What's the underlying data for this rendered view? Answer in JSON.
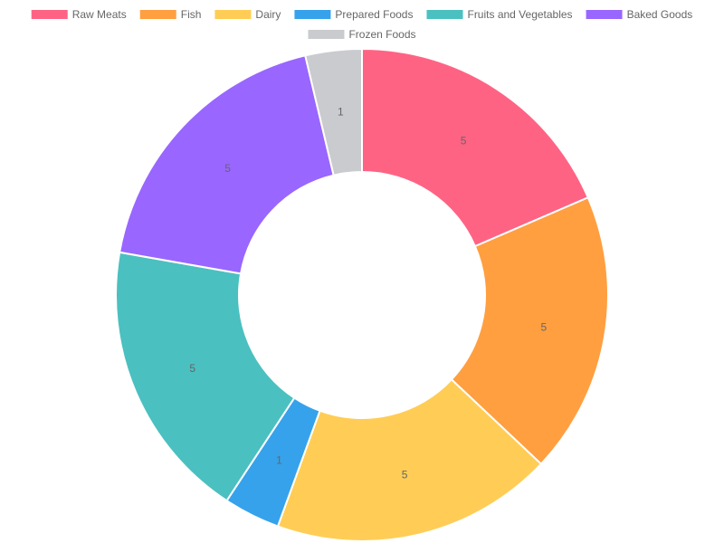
{
  "chart_data": {
    "type": "doughnut",
    "title": "",
    "categories": [
      "Raw Meats",
      "Fish",
      "Dairy",
      "Prepared Foods",
      "Fruits and Vegetables",
      "Baked Goods",
      "Frozen Foods"
    ],
    "values": [
      5,
      5,
      5,
      1,
      5,
      5,
      1
    ],
    "colors": [
      "#ff6384",
      "#ff9f40",
      "#ffcd56",
      "#36a2eb",
      "#4bc0c0",
      "#9966ff",
      "#c9cbcf"
    ],
    "data_labels_shown": true,
    "legend": {
      "position": "top",
      "items": [
        {
          "label": "Raw Meats",
          "color": "#ff6384"
        },
        {
          "label": "Fish",
          "color": "#ff9f40"
        },
        {
          "label": "Dairy",
          "color": "#ffcd56"
        },
        {
          "label": "Prepared Foods",
          "color": "#36a2eb"
        },
        {
          "label": "Fruits and Vegetables",
          "color": "#4bc0c0"
        },
        {
          "label": "Baked Goods",
          "color": "#9966ff"
        },
        {
          "label": "Frozen Foods",
          "color": "#c9cbcf"
        }
      ]
    }
  }
}
